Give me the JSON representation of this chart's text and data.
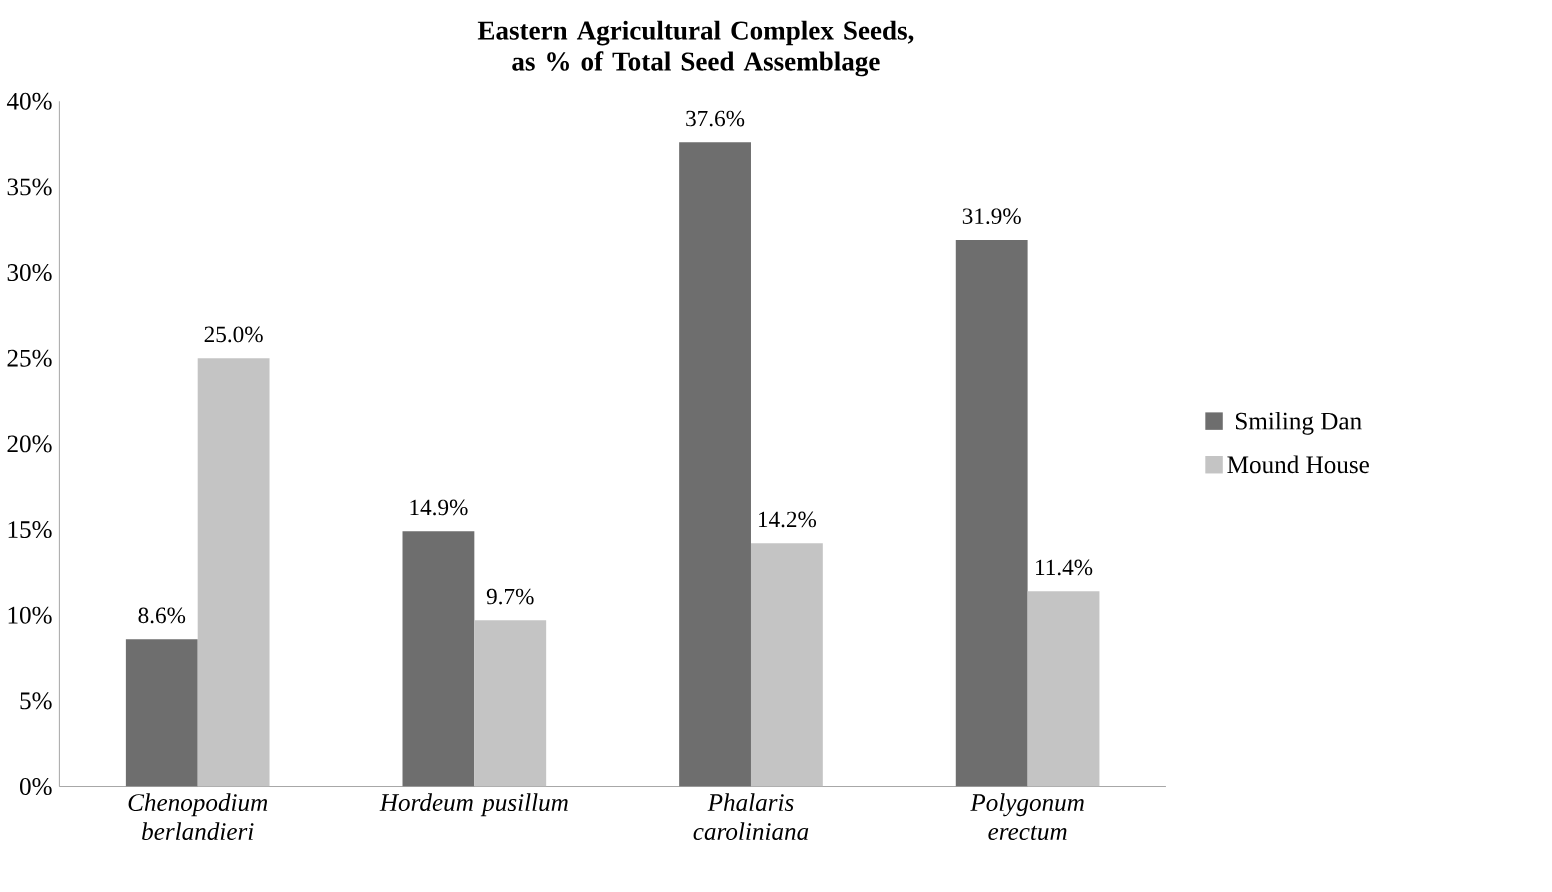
{
  "chart_data": {
    "type": "bar",
    "title": "Eastern Agricultural Complex Seeds, as % of Total Seed Assemblage",
    "categories": [
      "Chenopodium berlandieri",
      "Hordeum pusillum",
      "Phalaris caroliniana",
      "Polygonum erectum"
    ],
    "series": [
      {
        "name": "Smiling Dan",
        "color": "#6e6e6e",
        "values": [
          8.6,
          14.9,
          37.6,
          31.9
        ],
        "value_labels": [
          "8.6%",
          "14.9%",
          "37.6%",
          "31.9%"
        ]
      },
      {
        "name": "Mound House",
        "color": "#c4c4c4",
        "values": [
          25.0,
          9.7,
          14.2,
          11.4
        ],
        "value_labels": [
          "25.0%",
          "9.7%",
          "14.2%",
          "11.4%"
        ]
      }
    ],
    "ylim": [
      0,
      40
    ],
    "yticks": [
      {
        "value": 0,
        "label": "0%"
      },
      {
        "value": 5,
        "label": "5%"
      },
      {
        "value": 10,
        "label": "10%"
      },
      {
        "value": 15,
        "label": "15%"
      },
      {
        "value": 20,
        "label": "20%"
      },
      {
        "value": 25,
        "label": "25%"
      },
      {
        "value": 30,
        "label": "30%"
      },
      {
        "value": 35,
        "label": "35%"
      },
      {
        "value": 40,
        "label": "40%"
      }
    ],
    "grid": false,
    "legend": "right"
  }
}
